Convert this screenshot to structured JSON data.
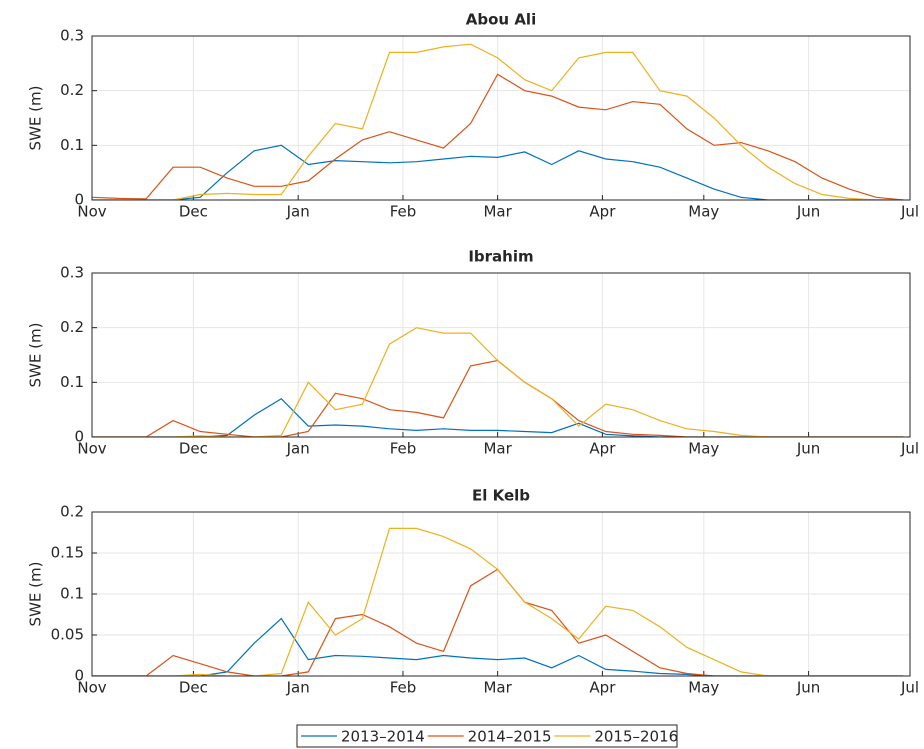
{
  "chart_data": [
    {
      "type": "line",
      "title": "Abou Ali",
      "y_label": "SWE (m)",
      "x": [
        0,
        8,
        16,
        24,
        32,
        40,
        48,
        56,
        64,
        72,
        80,
        88,
        96,
        104,
        112,
        120,
        128,
        136,
        144,
        152,
        160,
        168,
        176,
        184,
        192,
        200,
        208,
        216,
        224,
        232,
        240
      ],
      "xlim": [
        0,
        242
      ],
      "xticks": [
        {
          "value": 0,
          "label": "Nov"
        },
        {
          "value": 30,
          "label": "Dec"
        },
        {
          "value": 61,
          "label": "Jan"
        },
        {
          "value": 92,
          "label": "Feb"
        },
        {
          "value": 120,
          "label": "Mar"
        },
        {
          "value": 151,
          "label": "Apr"
        },
        {
          "value": 181,
          "label": "May"
        },
        {
          "value": 212,
          "label": "Jun"
        },
        {
          "value": 242,
          "label": "Jul"
        }
      ],
      "ylim": [
        0,
        0.3
      ],
      "yticks": [
        0,
        0.1,
        0.2,
        0.3
      ],
      "grid": true,
      "series": [
        {
          "name": "2013–2014",
          "color": "#0072BD",
          "values": [
            0,
            0,
            0,
            0,
            0.005,
            0.05,
            0.09,
            0.1,
            0.065,
            0.072,
            0.07,
            0.068,
            0.07,
            0.075,
            0.08,
            0.078,
            0.088,
            0.065,
            0.09,
            0.075,
            0.07,
            0.06,
            0.04,
            0.02,
            0.005,
            0,
            0,
            0,
            0,
            0,
            0
          ]
        },
        {
          "name": "2014–2015",
          "color": "#D95319",
          "values": [
            0.005,
            0.003,
            0.002,
            0.06,
            0.06,
            0.04,
            0.025,
            0.025,
            0.035,
            0.075,
            0.11,
            0.125,
            0.11,
            0.095,
            0.14,
            0.23,
            0.2,
            0.19,
            0.17,
            0.165,
            0.18,
            0.175,
            0.13,
            0.1,
            0.105,
            0.09,
            0.07,
            0.04,
            0.02,
            0.005,
            0
          ]
        },
        {
          "name": "2015–2016",
          "color": "#EDB120",
          "values": [
            0,
            0,
            0,
            0,
            0.01,
            0.012,
            0.01,
            0.01,
            0.08,
            0.14,
            0.13,
            0.27,
            0.27,
            0.28,
            0.285,
            0.26,
            0.22,
            0.2,
            0.26,
            0.27,
            0.27,
            0.2,
            0.19,
            0.15,
            0.1,
            0.06,
            0.03,
            0.01,
            0.003,
            0,
            0
          ]
        }
      ]
    },
    {
      "type": "line",
      "title": "Ibrahim",
      "y_label": "SWE (m)",
      "x": [
        0,
        8,
        16,
        24,
        32,
        40,
        48,
        56,
        64,
        72,
        80,
        88,
        96,
        104,
        112,
        120,
        128,
        136,
        144,
        152,
        160,
        168,
        176,
        184,
        192,
        200,
        208,
        216,
        224,
        232,
        240
      ],
      "xlim": [
        0,
        242
      ],
      "xticks": [
        {
          "value": 0,
          "label": "Nov"
        },
        {
          "value": 30,
          "label": "Dec"
        },
        {
          "value": 61,
          "label": "Jan"
        },
        {
          "value": 92,
          "label": "Feb"
        },
        {
          "value": 120,
          "label": "Mar"
        },
        {
          "value": 151,
          "label": "Apr"
        },
        {
          "value": 181,
          "label": "May"
        },
        {
          "value": 212,
          "label": "Jun"
        },
        {
          "value": 242,
          "label": "Jul"
        }
      ],
      "ylim": [
        0,
        0.3
      ],
      "yticks": [
        0,
        0.1,
        0.2,
        0.3
      ],
      "grid": true,
      "series": [
        {
          "color": "#0072BD",
          "values": [
            0,
            0,
            0,
            0,
            0,
            0.003,
            0.04,
            0.07,
            0.02,
            0.022,
            0.02,
            0.015,
            0.012,
            0.015,
            0.012,
            0.012,
            0.01,
            0.008,
            0.025,
            0.005,
            0.002,
            0,
            0,
            0,
            0,
            0,
            0,
            0,
            0,
            0,
            0
          ]
        },
        {
          "color": "#D95319",
          "values": [
            0,
            0,
            0,
            0.03,
            0.01,
            0.005,
            0,
            0,
            0.01,
            0.08,
            0.07,
            0.05,
            0.045,
            0.035,
            0.13,
            0.14,
            0.1,
            0.07,
            0.03,
            0.01,
            0.005,
            0.003,
            0,
            0,
            0,
            0,
            0,
            0,
            0,
            0,
            0
          ]
        },
        {
          "color": "#EDB120",
          "values": [
            0,
            0,
            0,
            0,
            0.002,
            0,
            0,
            0.003,
            0.1,
            0.05,
            0.06,
            0.17,
            0.2,
            0.19,
            0.19,
            0.14,
            0.1,
            0.07,
            0.02,
            0.06,
            0.05,
            0.03,
            0.015,
            0.01,
            0.003,
            0,
            0,
            0,
            0,
            0,
            0
          ]
        }
      ]
    },
    {
      "type": "line",
      "title": "El Kelb",
      "y_label": "SWE (m)",
      "x": [
        0,
        8,
        16,
        24,
        32,
        40,
        48,
        56,
        64,
        72,
        80,
        88,
        96,
        104,
        112,
        120,
        128,
        136,
        144,
        152,
        160,
        168,
        176,
        184,
        192,
        200,
        208,
        216,
        224,
        232,
        240
      ],
      "xlim": [
        0,
        242
      ],
      "xticks": [
        {
          "value": 0,
          "label": "Nov"
        },
        {
          "value": 30,
          "label": "Dec"
        },
        {
          "value": 61,
          "label": "Jan"
        },
        {
          "value": 92,
          "label": "Feb"
        },
        {
          "value": 120,
          "label": "Mar"
        },
        {
          "value": 151,
          "label": "Apr"
        },
        {
          "value": 181,
          "label": "May"
        },
        {
          "value": 212,
          "label": "Jun"
        },
        {
          "value": 242,
          "label": "Jul"
        }
      ],
      "ylim": [
        0,
        0.2
      ],
      "yticks": [
        0,
        0.05,
        0.1,
        0.15,
        0.2
      ],
      "grid": true,
      "series": [
        {
          "color": "#0072BD",
          "values": [
            0,
            0,
            0,
            0,
            0,
            0.005,
            0.04,
            0.07,
            0.02,
            0.025,
            0.024,
            0.022,
            0.02,
            0.025,
            0.022,
            0.02,
            0.022,
            0.01,
            0.025,
            0.008,
            0.006,
            0.003,
            0.002,
            0,
            0,
            0,
            0,
            0,
            0,
            0,
            0
          ]
        },
        {
          "color": "#D95319",
          "values": [
            0,
            0,
            0,
            0.025,
            0.015,
            0.005,
            0,
            0,
            0.005,
            0.07,
            0.075,
            0.06,
            0.04,
            0.03,
            0.11,
            0.13,
            0.09,
            0.08,
            0.04,
            0.05,
            0.03,
            0.01,
            0.003,
            0,
            0,
            0,
            0,
            0,
            0,
            0,
            0
          ]
        },
        {
          "color": "#EDB120",
          "values": [
            0,
            0,
            0,
            0,
            0.002,
            0,
            0,
            0.003,
            0.09,
            0.05,
            0.07,
            0.18,
            0.18,
            0.17,
            0.155,
            0.13,
            0.09,
            0.07,
            0.045,
            0.085,
            0.08,
            0.06,
            0.035,
            0.02,
            0.005,
            0,
            0,
            0,
            0,
            0,
            0
          ]
        }
      ]
    }
  ]
}
